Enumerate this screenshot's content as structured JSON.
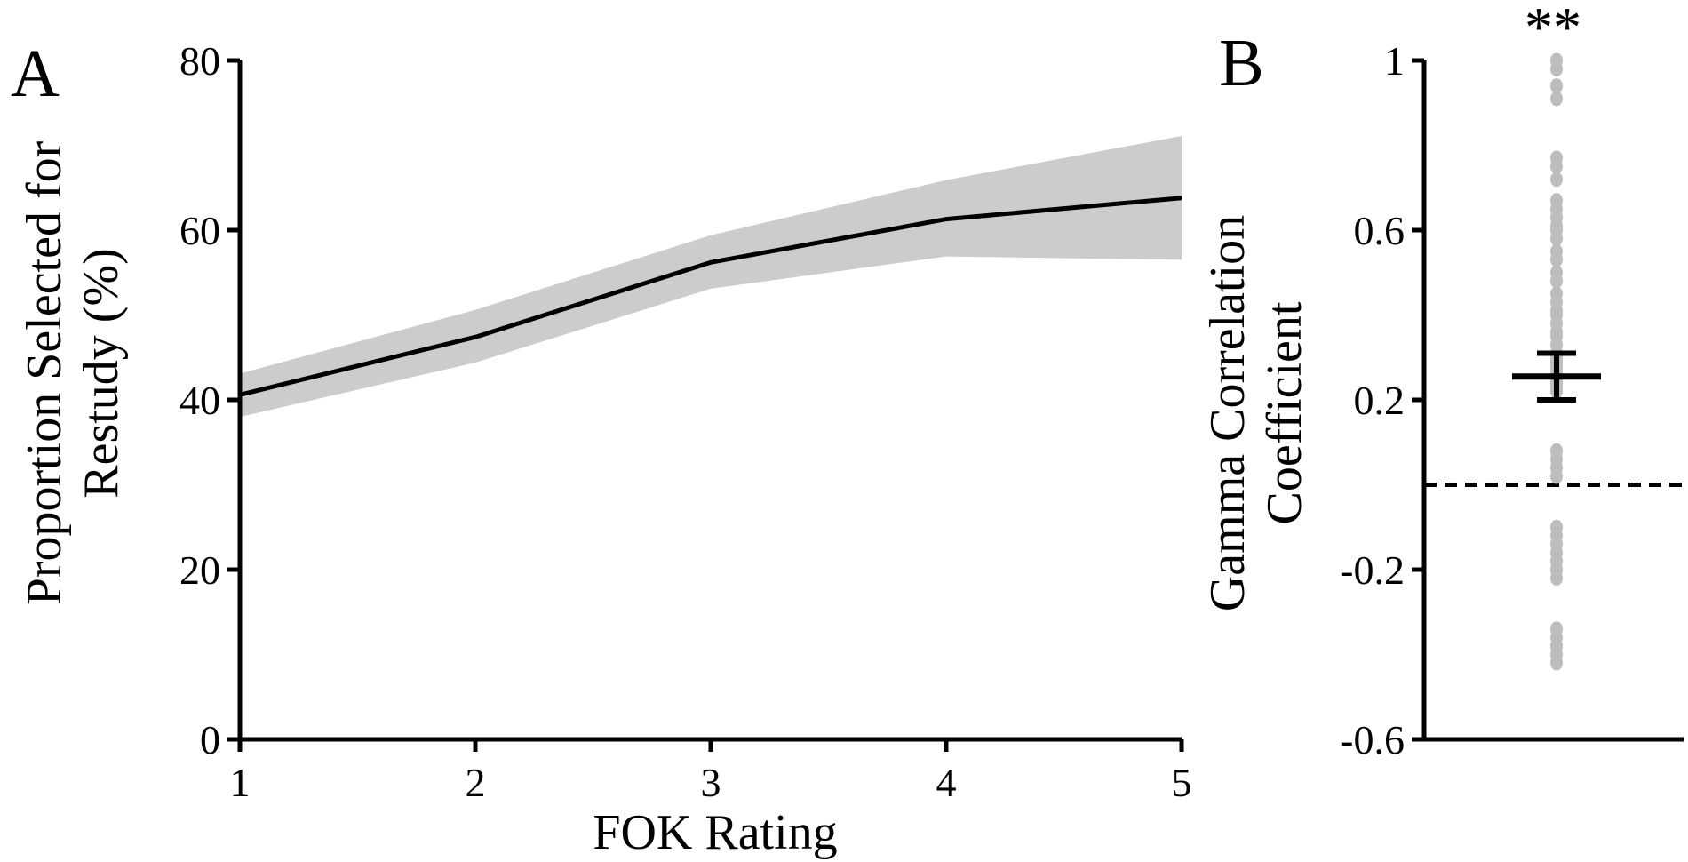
{
  "chart_data": [
    {
      "panel_label": "A",
      "type": "line",
      "xlabel": "FOK Rating",
      "ylabel_lines": [
        "Proportion Selected for",
        "Restudy (%)"
      ],
      "x": [
        1,
        2,
        3,
        4,
        5
      ],
      "x_ticks": [
        "1",
        "2",
        "3",
        "4",
        "5"
      ],
      "xlim": [
        1,
        5
      ],
      "y_ticks": [
        "0",
        "20",
        "40",
        "60",
        "80"
      ],
      "ylim": [
        0,
        80
      ],
      "series": [
        {
          "values": [
            40.6,
            47.4,
            56.2,
            61.3,
            63.8
          ],
          "band_upper": [
            43.1,
            50.6,
            59.4,
            65.9,
            71.1
          ],
          "band_lower": [
            38.0,
            44.4,
            53.1,
            56.9,
            56.5
          ],
          "color": "#000000",
          "band_color": "#cccccc"
        }
      ],
      "grid": false
    },
    {
      "panel_label": "B",
      "type": "scatter",
      "ylabel_lines": [
        "Gamma Correlation",
        "Coefficient"
      ],
      "y_ticks": [
        "-0.6",
        "-0.2",
        "0.2",
        "0.6",
        "1"
      ],
      "ylim": [
        -0.6,
        1.0
      ],
      "points": [
        1.0,
        0.98,
        0.94,
        0.91,
        0.77,
        0.75,
        0.72,
        0.67,
        0.65,
        0.63,
        0.61,
        0.6,
        0.58,
        0.55,
        0.53,
        0.5,
        0.48,
        0.45,
        0.43,
        0.41,
        0.4,
        0.38,
        0.36,
        0.35,
        0.33,
        0.31,
        0.3,
        0.29,
        0.28,
        0.27,
        0.26,
        0.25,
        0.24,
        0.23,
        0.22,
        0.08,
        0.06,
        0.04,
        0.02,
        -0.1,
        -0.12,
        -0.14,
        -0.16,
        -0.18,
        -0.2,
        -0.22,
        -0.34,
        -0.36,
        -0.38,
        -0.4,
        -0.42
      ],
      "mean": 0.255,
      "error_upper": 0.31,
      "error_lower": 0.2,
      "reference_line": 0.0,
      "significance": "**",
      "point_color": "#bdbdbd",
      "grid": false
    }
  ]
}
